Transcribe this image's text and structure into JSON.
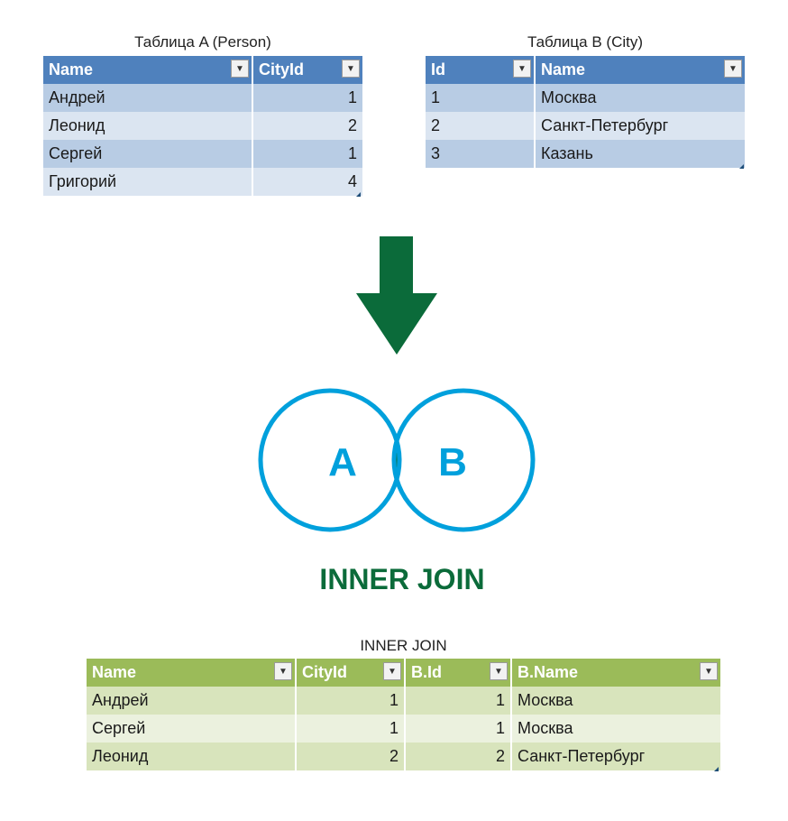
{
  "table_a": {
    "caption": "Таблица A (Person)",
    "headers": [
      "Name",
      "CityId"
    ],
    "rows": [
      [
        "Андрей",
        "1"
      ],
      [
        "Леонид",
        "2"
      ],
      [
        "Сергей",
        "1"
      ],
      [
        "Григорий",
        "4"
      ]
    ]
  },
  "table_b": {
    "caption": "Таблица B (City)",
    "headers": [
      "Id",
      "Name"
    ],
    "rows": [
      [
        "1",
        "Москва"
      ],
      [
        "2",
        "Санкт-Петербург"
      ],
      [
        "3",
        "Казань"
      ]
    ]
  },
  "venn": {
    "left_label": "A",
    "right_label": "B",
    "title": "INNER JOIN",
    "colors": {
      "circle": "#00a0dc",
      "fill": "#0b6b3a",
      "arrow": "#0b6b3a"
    }
  },
  "result": {
    "caption": "INNER JOIN",
    "headers": [
      "Name",
      "CityId",
      "B.Id",
      "B.Name"
    ],
    "rows": [
      [
        "Андрей",
        "1",
        "1",
        "Москва"
      ],
      [
        "Сергей",
        "1",
        "1",
        "Москва"
      ],
      [
        "Леонид",
        "2",
        "2",
        "Санкт-Петербург"
      ]
    ]
  },
  "icons": {
    "filter_dropdown": "dropdown-arrow-icon",
    "down_arrow": "down-arrow-icon"
  }
}
